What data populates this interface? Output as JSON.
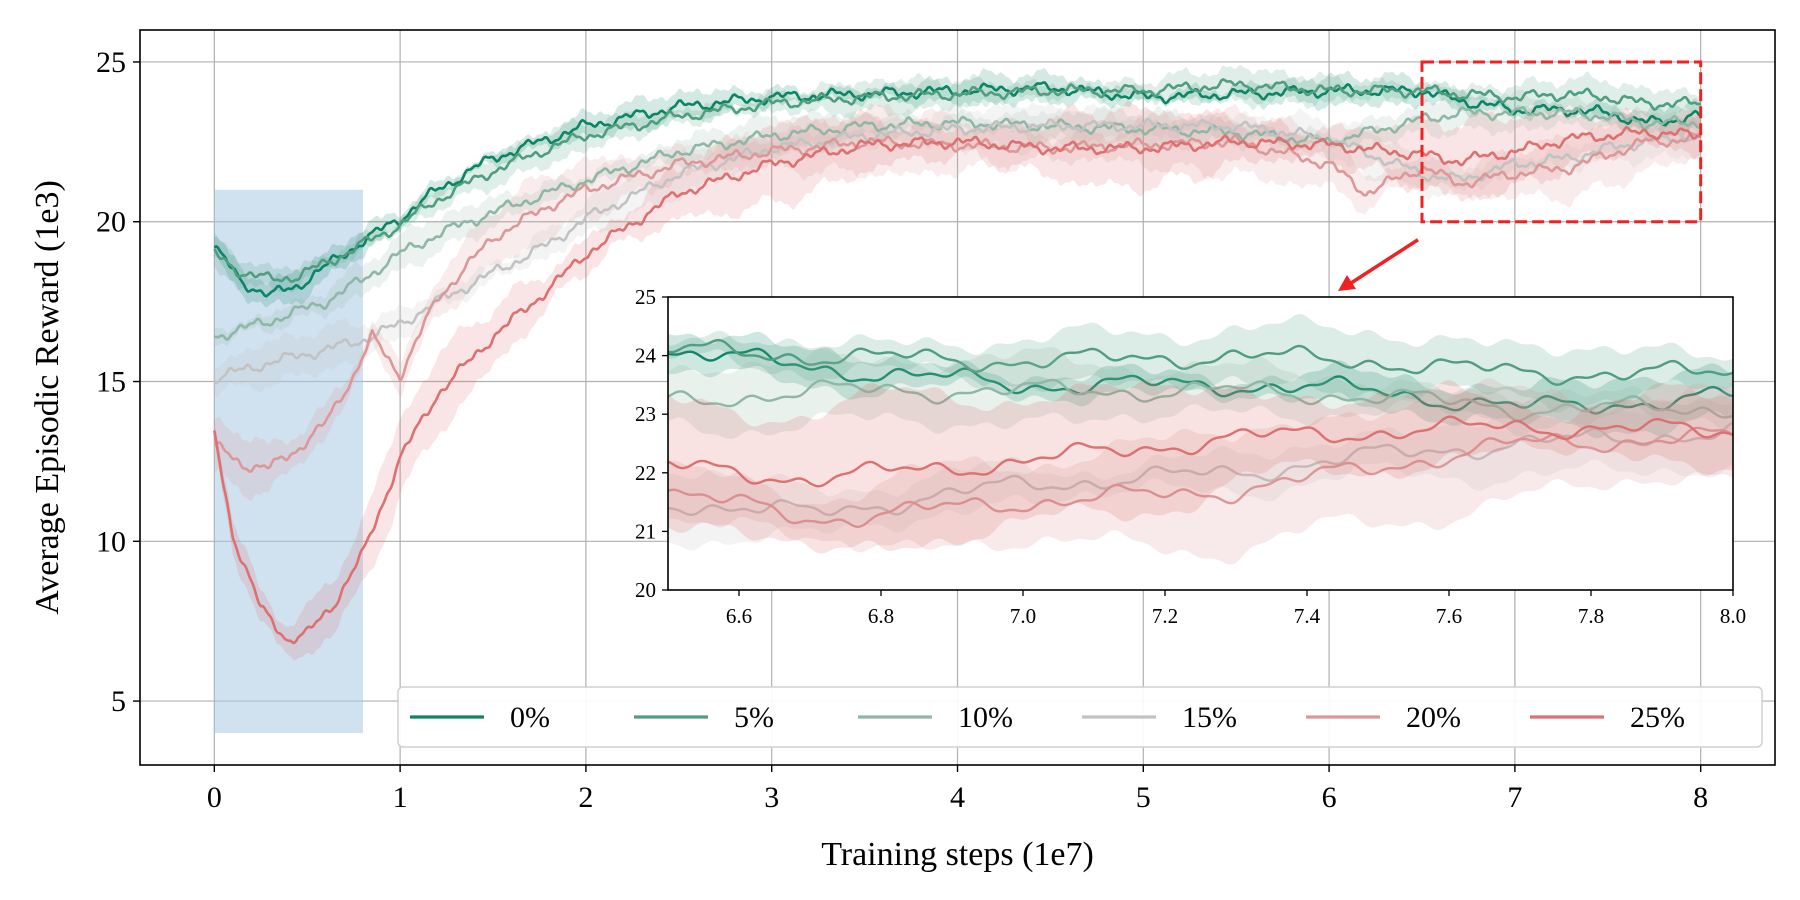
{
  "chart_data": {
    "type": "line",
    "xlabel": "Training steps (1e7)",
    "ylabel": "Average Episodic Reward (1e3)",
    "xlim": [
      -0.4,
      8.4
    ],
    "ylim": [
      3,
      26
    ],
    "xticks": [
      0,
      1,
      2,
      3,
      4,
      5,
      6,
      7,
      8
    ],
    "yticks": [
      5,
      10,
      15,
      20,
      25
    ],
    "grid": true,
    "legend": {
      "placement": "lower-right",
      "columns": 6
    },
    "highlight_region": {
      "x": [
        0,
        0.8
      ],
      "y": [
        4,
        21
      ],
      "color": "#a9c9e2"
    },
    "zoom_box": {
      "x": [
        6.5,
        8.0
      ],
      "y": [
        20,
        25
      ],
      "color": "#ee2222"
    },
    "series": [
      {
        "name": "0%",
        "color": "#0b8566",
        "band": 0.4,
        "x": [
          0,
          0.15,
          0.3,
          0.45,
          0.6,
          0.8,
          1.0,
          1.2,
          1.5,
          1.8,
          2.0,
          2.5,
          3.0,
          3.5,
          4.0,
          4.5,
          5.0,
          5.5,
          6.0,
          6.5,
          6.7,
          7.0,
          7.3,
          7.5,
          7.7,
          8.0
        ],
        "y": [
          19.2,
          18.1,
          17.7,
          18.0,
          18.6,
          19.4,
          20.1,
          21.0,
          22.0,
          22.6,
          23.0,
          23.6,
          23.9,
          24.0,
          24.1,
          24.2,
          23.9,
          24.0,
          24.1,
          24.1,
          23.8,
          23.5,
          23.5,
          23.4,
          23.1,
          23.3
        ]
      },
      {
        "name": "5%",
        "color": "#4f9e80",
        "band": 0.45,
        "x": [
          0,
          0.15,
          0.3,
          0.45,
          0.6,
          0.8,
          1.0,
          1.2,
          1.5,
          1.8,
          2.0,
          2.5,
          3.0,
          3.5,
          4.0,
          4.5,
          5.0,
          5.5,
          6.0,
          6.5,
          6.7,
          7.0,
          7.3,
          7.5,
          7.7,
          8.0
        ],
        "y": [
          19.0,
          18.4,
          18.2,
          18.3,
          18.7,
          19.3,
          19.9,
          20.7,
          21.6,
          22.3,
          22.7,
          23.3,
          23.7,
          23.9,
          24.0,
          24.1,
          24.1,
          24.3,
          24.1,
          24.1,
          24.0,
          23.9,
          24.0,
          23.9,
          23.7,
          23.7
        ]
      },
      {
        "name": "10%",
        "color": "#8fb7a6",
        "band": 0.5,
        "x": [
          0,
          0.3,
          0.6,
          0.8,
          1.0,
          1.2,
          1.5,
          1.8,
          2.0,
          2.5,
          3.0,
          3.5,
          4.0,
          4.5,
          5.0,
          5.5,
          6.0,
          6.5,
          6.7,
          7.0,
          7.3,
          7.5,
          7.7,
          8.0
        ],
        "y": [
          16.4,
          16.9,
          17.5,
          18.2,
          19.0,
          19.6,
          20.3,
          20.9,
          21.3,
          22.2,
          22.7,
          23.0,
          23.1,
          23.0,
          22.9,
          22.8,
          22.5,
          23.2,
          23.4,
          23.4,
          23.4,
          23.3,
          23.1,
          23.1
        ]
      },
      {
        "name": "15%",
        "color": "#c2c2c2",
        "band": 0.6,
        "x": [
          0,
          0.3,
          0.6,
          0.8,
          1.0,
          1.2,
          1.5,
          1.8,
          2.0,
          2.5,
          3.0,
          3.5,
          4.0,
          4.5,
          5.0,
          5.5,
          6.0,
          6.5,
          6.7,
          7.0,
          7.3,
          7.5,
          7.7,
          8.0
        ],
        "y": [
          15.1,
          15.6,
          16.0,
          16.3,
          16.8,
          17.5,
          18.4,
          19.3,
          20.1,
          21.5,
          22.3,
          22.7,
          22.9,
          23.0,
          23.0,
          23.0,
          22.6,
          21.5,
          21.3,
          21.8,
          22.0,
          22.3,
          22.5,
          22.7
        ]
      },
      {
        "name": "20%",
        "color": "#dc9898",
        "band": 0.9,
        "x": [
          0,
          0.15,
          0.3,
          0.45,
          0.6,
          0.75,
          0.85,
          0.95,
          1.0,
          1.2,
          1.5,
          1.8,
          2.0,
          2.5,
          3.0,
          3.5,
          4.0,
          4.5,
          5.0,
          5.5,
          6.0,
          6.2,
          6.5,
          6.7,
          7.0,
          7.3,
          7.5,
          7.7,
          8.0
        ],
        "y": [
          13.0,
          12.4,
          12.3,
          12.9,
          13.7,
          15.2,
          16.4,
          15.6,
          15.2,
          17.6,
          19.5,
          20.5,
          21.0,
          21.8,
          22.2,
          22.5,
          22.4,
          22.3,
          22.4,
          22.5,
          21.8,
          20.9,
          21.7,
          21.2,
          21.5,
          21.7,
          22.1,
          22.5,
          22.6
        ]
      },
      {
        "name": "25%",
        "color": "#dd7070",
        "band": 1.1,
        "x": [
          0,
          0.1,
          0.25,
          0.4,
          0.5,
          0.65,
          0.8,
          1.0,
          1.2,
          1.5,
          1.8,
          2.0,
          2.5,
          3.0,
          3.5,
          4.0,
          4.5,
          5.0,
          5.5,
          6.0,
          6.5,
          6.7,
          7.0,
          7.3,
          7.5,
          7.7,
          8.0
        ],
        "y": [
          13.4,
          10.2,
          7.9,
          6.9,
          7.1,
          8.1,
          9.6,
          12.6,
          14.6,
          16.4,
          17.9,
          19.0,
          20.9,
          21.8,
          22.4,
          22.5,
          22.3,
          22.3,
          22.5,
          22.4,
          22.1,
          21.9,
          22.2,
          22.6,
          22.7,
          22.8,
          22.7
        ]
      }
    ],
    "inset": {
      "xlim": [
        6.5,
        8.0
      ],
      "ylim": [
        20,
        25
      ],
      "xticks": [
        "6.6",
        "6.8",
        "7.0",
        "7.2",
        "7.4",
        "7.6",
        "7.8",
        "8.0"
      ],
      "yticks": [
        "20",
        "21",
        "22",
        "23",
        "24",
        "25"
      ]
    }
  }
}
